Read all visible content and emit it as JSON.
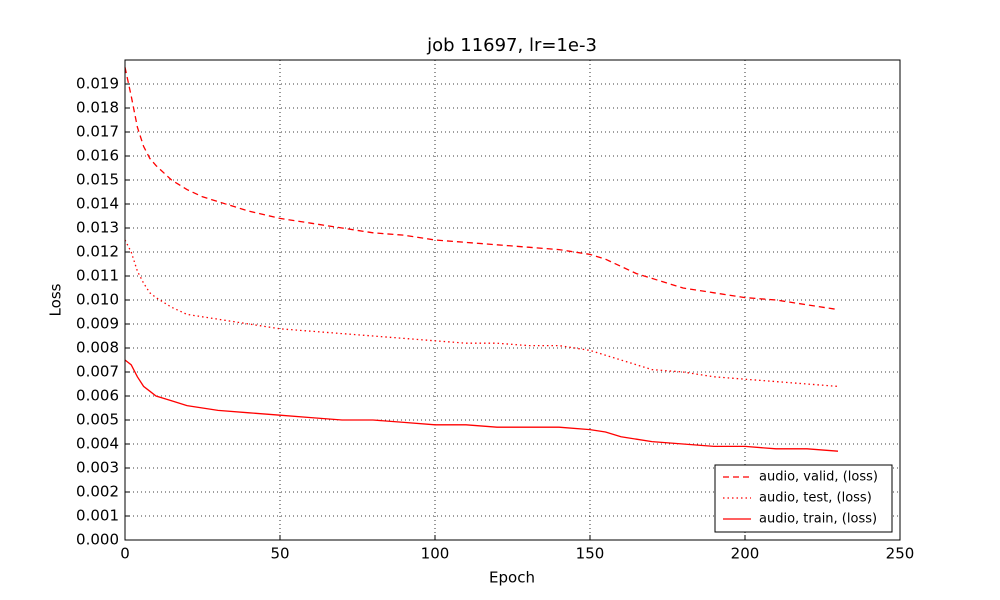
{
  "chart_data": {
    "type": "line",
    "title": "job 11697, lr=1e-3",
    "xlabel": "Epoch",
    "ylabel": "Loss",
    "x": [
      0,
      2,
      4,
      6,
      8,
      10,
      15,
      20,
      25,
      30,
      40,
      50,
      60,
      70,
      80,
      90,
      100,
      110,
      120,
      130,
      140,
      150,
      155,
      160,
      165,
      170,
      180,
      190,
      200,
      210,
      220,
      230
    ],
    "series": [
      {
        "name": "audio, valid, (loss)",
        "color": "#ff0000",
        "linestyle": "dashed",
        "values": [
          0.0197,
          0.0185,
          0.0172,
          0.0164,
          0.0159,
          0.0156,
          0.015,
          0.0146,
          0.0143,
          0.0141,
          0.0137,
          0.0134,
          0.0132,
          0.013,
          0.0128,
          0.0127,
          0.0125,
          0.0124,
          0.0123,
          0.0122,
          0.0121,
          0.0119,
          0.0117,
          0.0114,
          0.0111,
          0.0109,
          0.0105,
          0.0103,
          0.0101,
          0.01,
          0.0098,
          0.0096
        ]
      },
      {
        "name": "audio, test, (loss)",
        "color": "#ff0000",
        "linestyle": "dotted",
        "values": [
          0.0125,
          0.012,
          0.0112,
          0.0107,
          0.0103,
          0.0101,
          0.0097,
          0.0094,
          0.0093,
          0.0092,
          0.009,
          0.0088,
          0.0087,
          0.0086,
          0.0085,
          0.0084,
          0.0083,
          0.0082,
          0.0082,
          0.0081,
          0.0081,
          0.0079,
          0.0077,
          0.0075,
          0.0073,
          0.0071,
          0.007,
          0.0068,
          0.0067,
          0.0066,
          0.0065,
          0.0064
        ]
      },
      {
        "name": "audio, train, (loss)",
        "color": "#ff0000",
        "linestyle": "solid",
        "values": [
          0.0075,
          0.0073,
          0.0068,
          0.0064,
          0.0062,
          0.006,
          0.0058,
          0.0056,
          0.0055,
          0.0054,
          0.0053,
          0.0052,
          0.0051,
          0.005,
          0.005,
          0.0049,
          0.0048,
          0.0048,
          0.0047,
          0.0047,
          0.0047,
          0.0046,
          0.0045,
          0.0043,
          0.0042,
          0.0041,
          0.004,
          0.0039,
          0.0039,
          0.0038,
          0.0038,
          0.0037
        ]
      }
    ],
    "xlim": [
      0,
      250
    ],
    "xticks": [
      0,
      50,
      100,
      150,
      200,
      250
    ],
    "ylim": [
      0,
      0.02
    ],
    "yticks": [
      {
        "value": 0,
        "label": "0.000"
      },
      {
        "value": 0.001,
        "label": "0.001"
      },
      {
        "value": 0.002,
        "label": "0.002"
      },
      {
        "value": 0.003,
        "label": "0.003"
      },
      {
        "value": 0.004,
        "label": "0.004"
      },
      {
        "value": 0.005,
        "label": "0.005"
      },
      {
        "value": 0.006,
        "label": "0.006"
      },
      {
        "value": 0.007,
        "label": "0.007"
      },
      {
        "value": 0.008,
        "label": "0.008"
      },
      {
        "value": 0.009,
        "label": "0.009"
      },
      {
        "value": 0.01,
        "label": "0.010"
      },
      {
        "value": 0.011,
        "label": "0.011"
      },
      {
        "value": 0.012,
        "label": "0.012"
      },
      {
        "value": 0.013,
        "label": "0.013"
      },
      {
        "value": 0.014,
        "label": "0.014"
      },
      {
        "value": 0.015,
        "label": "0.015"
      },
      {
        "value": 0.016,
        "label": "0.016"
      },
      {
        "value": 0.017,
        "label": "0.017"
      },
      {
        "value": 0.018,
        "label": "0.018"
      },
      {
        "value": 0.019,
        "label": "0.019"
      }
    ],
    "grid": true,
    "legend": "lower right"
  }
}
